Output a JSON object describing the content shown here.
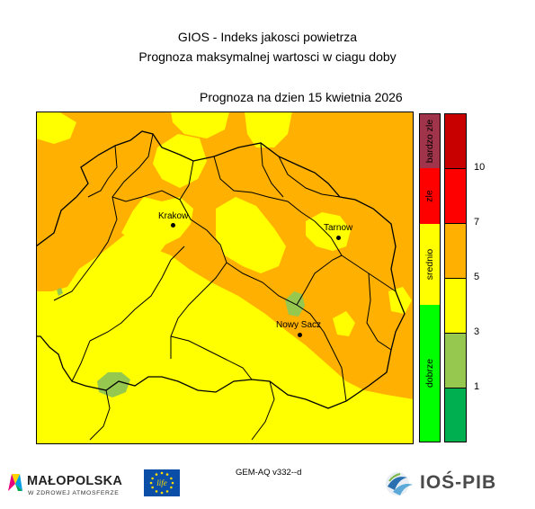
{
  "header": {
    "title_line1": "GIOS - Indeks jakosci powietrza",
    "title_line2": "Prognoza maksymalnej wartosci w ciagu doby",
    "forecast_date": "Prognoza na dzien  15 kwietnia 2026"
  },
  "map": {
    "region": "Malopolska",
    "colors": {
      "level_orange": "#ffb000",
      "level_yellow": "#ffff00",
      "level_light_green": "#96c850",
      "boundary": "#000000"
    },
    "cities": [
      {
        "name": "Krakow",
        "id": "krakow"
      },
      {
        "name": "Tarnow",
        "id": "tarnow"
      },
      {
        "name": "Nowy Sacz",
        "id": "nowy-sacz"
      }
    ]
  },
  "category_legend": [
    {
      "label": "bardzo zle",
      "color": "#a0344a"
    },
    {
      "label": "zle",
      "color": "#ff0000"
    },
    {
      "label": "srednio",
      "color": "#ffff00"
    },
    {
      "label": "dobrze",
      "color": "#00ff00"
    }
  ],
  "color_scale": {
    "segments": [
      {
        "color": "#c80000"
      },
      {
        "color": "#ff0000"
      },
      {
        "color": "#ffb000"
      },
      {
        "color": "#ffff00"
      },
      {
        "color": "#96c850"
      },
      {
        "color": "#00b050"
      }
    ],
    "ticks": [
      "10",
      "7",
      "5",
      "3",
      "1"
    ]
  },
  "footer": {
    "model_version": "GEM-AQ v332--d",
    "sponsor_name": "MAŁOPOLSKA",
    "sponsor_tagline": "W ZDROWEJ ATMOSFERZE",
    "sponsor_logo_text": "life",
    "institute_name": "IOŚ-PIB"
  }
}
